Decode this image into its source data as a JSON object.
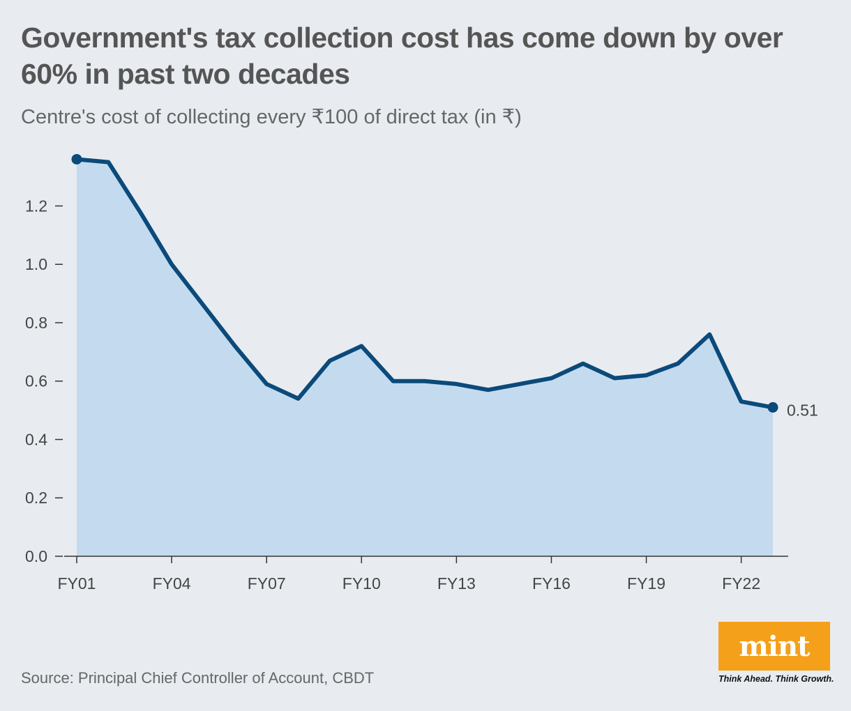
{
  "title": "Government's tax collection cost has come down by over 60% in past two decades",
  "subtitle": "Centre's cost of collecting every ₹100 of direct tax (in ₹)",
  "source": "Source: Principal Chief Controller of Account, CBDT",
  "logo": {
    "text": "mint",
    "tagline": "Think Ahead. Think Growth.",
    "color": "#f5a01a"
  },
  "chart_data": {
    "type": "area",
    "title": "Government's tax collection cost has come down by over 60% in past two decades",
    "subtitle": "Centre's cost of collecting every ₹100 of direct tax (in ₹)",
    "x": [
      "FY01",
      "FY02",
      "FY03",
      "FY04",
      "FY05",
      "FY06",
      "FY07",
      "FY08",
      "FY09",
      "FY10",
      "FY11",
      "FY12",
      "FY13",
      "FY14",
      "FY15",
      "FY16",
      "FY17",
      "FY18",
      "FY19",
      "FY20",
      "FY21",
      "FY22",
      "FY23"
    ],
    "values": [
      1.36,
      1.35,
      1.18,
      1.0,
      0.86,
      0.72,
      0.59,
      0.54,
      0.67,
      0.72,
      0.6,
      0.6,
      0.59,
      0.57,
      0.59,
      0.61,
      0.66,
      0.61,
      0.62,
      0.66,
      0.76,
      0.53,
      0.51
    ],
    "x_tick_labels": [
      "FY01",
      "FY04",
      "FY07",
      "FY10",
      "FY13",
      "FY16",
      "FY19",
      "FY22"
    ],
    "y_ticks": [
      0.0,
      0.2,
      0.4,
      0.6,
      0.8,
      1.0,
      1.2
    ],
    "y_tick_labels": [
      "0.0",
      "0.2",
      "0.4",
      "0.6",
      "0.8",
      "1.0",
      "1.2"
    ],
    "ylim": [
      0,
      1.4
    ],
    "end_label": "0.51",
    "grid": false,
    "colors": {
      "line": "#0b4a7a",
      "fill": "#c4dbef",
      "axis": "#333333"
    }
  }
}
